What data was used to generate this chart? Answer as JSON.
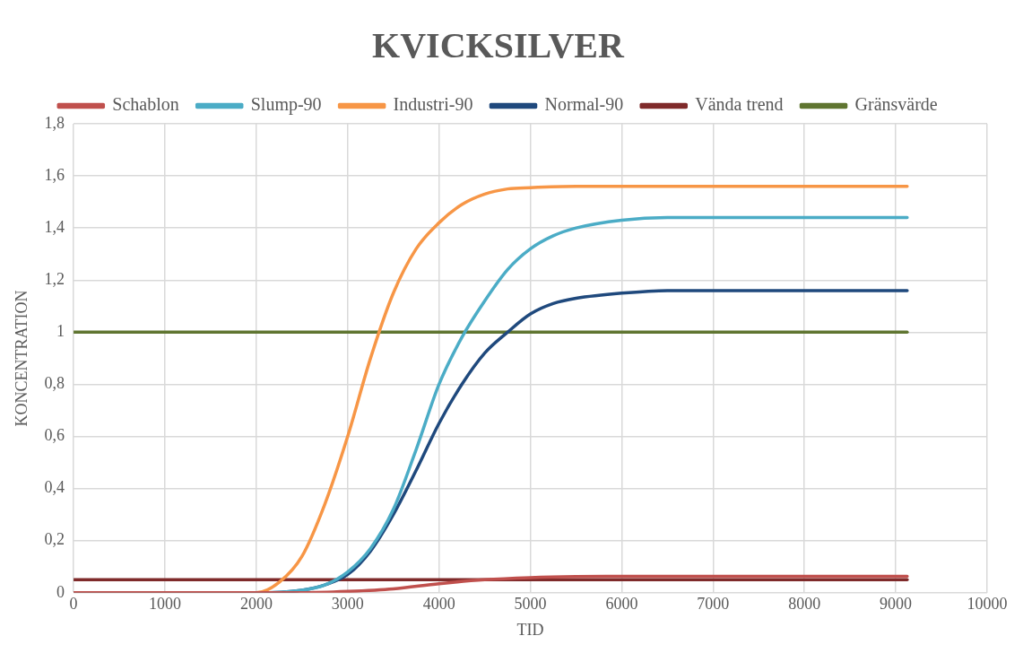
{
  "chart_data": {
    "type": "line",
    "title": "KVICKSILVER",
    "xlabel": "TID",
    "ylabel": "KONCENTRATION",
    "xlim": [
      0,
      10000
    ],
    "xticks": [
      0,
      1000,
      2000,
      3000,
      4000,
      5000,
      6000,
      7000,
      8000,
      9000,
      10000
    ],
    "ylim": [
      0,
      1.8
    ],
    "yticks": [
      {
        "value": 0,
        "label": "0"
      },
      {
        "value": 0.2,
        "label": "0,2"
      },
      {
        "value": 0.4,
        "label": "0,4"
      },
      {
        "value": 0.6,
        "label": "0,6"
      },
      {
        "value": 0.8,
        "label": "0,8"
      },
      {
        "value": 1,
        "label": "1"
      },
      {
        "value": 1.2,
        "label": "1,2"
      },
      {
        "value": 1.4,
        "label": "1,4"
      },
      {
        "value": 1.6,
        "label": "1,6"
      },
      {
        "value": 1.8,
        "label": "1,8"
      }
    ],
    "grid": true,
    "legend": "top",
    "marker": "none",
    "line_style": "solid",
    "series": [
      {
        "name": "Schablon",
        "color": "#c0504d",
        "x": [
          0,
          2000,
          2500,
          3000,
          3500,
          4000,
          4500,
          5000,
          5500,
          6000,
          7000,
          8000,
          9125
        ],
        "values": [
          0,
          0,
          0,
          0.005,
          0.015,
          0.035,
          0.05,
          0.058,
          0.062,
          0.063,
          0.063,
          0.063,
          0.063
        ]
      },
      {
        "name": "Slump-90",
        "color": "#4bacc6",
        "x": [
          0,
          2000,
          2500,
          2750,
          3000,
          3250,
          3500,
          3750,
          4000,
          4250,
          4500,
          4750,
          5000,
          5250,
          5500,
          6000,
          6500,
          7000,
          8000,
          9125
        ],
        "values": [
          0,
          0,
          0.01,
          0.03,
          0.08,
          0.17,
          0.32,
          0.55,
          0.8,
          0.98,
          1.12,
          1.24,
          1.32,
          1.37,
          1.4,
          1.43,
          1.44,
          1.44,
          1.44,
          1.44
        ]
      },
      {
        "name": "Industri-90",
        "color": "#f79646",
        "x": [
          0,
          2000,
          2250,
          2500,
          2750,
          3000,
          3250,
          3500,
          3750,
          4000,
          4250,
          4500,
          4750,
          5000,
          5500,
          6000,
          7000,
          8000,
          9125
        ],
        "values": [
          0,
          0,
          0.04,
          0.14,
          0.34,
          0.6,
          0.9,
          1.15,
          1.32,
          1.42,
          1.49,
          1.53,
          1.55,
          1.555,
          1.56,
          1.56,
          1.56,
          1.56,
          1.56
        ]
      },
      {
        "name": "Normal-90",
        "color": "#1f497d",
        "x": [
          0,
          2000,
          2500,
          2750,
          3000,
          3250,
          3500,
          3750,
          4000,
          4250,
          4500,
          4750,
          5000,
          5250,
          5500,
          6000,
          6500,
          7000,
          8000,
          9125
        ],
        "values": [
          0,
          0,
          0.01,
          0.03,
          0.07,
          0.16,
          0.3,
          0.47,
          0.65,
          0.8,
          0.92,
          1.0,
          1.07,
          1.11,
          1.13,
          1.15,
          1.16,
          1.16,
          1.16,
          1.16
        ]
      },
      {
        "name": "Vända trend",
        "color": "#7f2a2a",
        "x": [
          0,
          9125
        ],
        "values": [
          0.05,
          0.05
        ]
      },
      {
        "name": "Gränsvärde",
        "color": "#5f7530",
        "x": [
          0,
          9125
        ],
        "values": [
          1,
          1
        ]
      }
    ]
  }
}
